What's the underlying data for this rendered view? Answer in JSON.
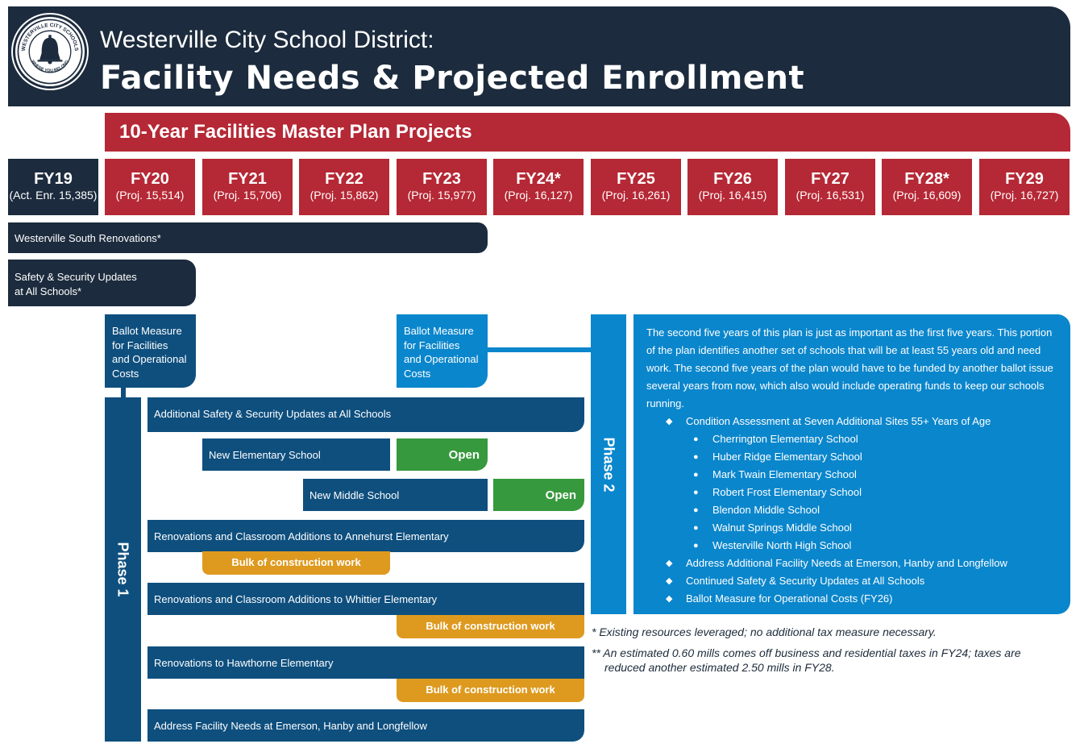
{
  "header": {
    "logo_ring_text": "WESTERVILLE CITY SCHOOLS",
    "logo_motto": "WHERE YOU BELONG",
    "title_line1": "Westerville City School District:",
    "title_line2": "Facility Needs & Projected Enrollment"
  },
  "plan_banner": "10-Year Facilities Master Plan Projects",
  "years": [
    {
      "fy": "FY19",
      "enrollment": "(Act. Enr. 15,385)"
    },
    {
      "fy": "FY20",
      "enrollment": "(Proj. 15,514)"
    },
    {
      "fy": "FY21",
      "enrollment": "(Proj. 15,706)"
    },
    {
      "fy": "FY22",
      "enrollment": "(Proj. 15,862)"
    },
    {
      "fy": "FY23",
      "enrollment": "(Proj. 15,977)"
    },
    {
      "fy": "FY24*",
      "enrollment": "(Proj. 16,127)"
    },
    {
      "fy": "FY25",
      "enrollment": "(Proj. 16,261)"
    },
    {
      "fy": "FY26",
      "enrollment": "(Proj. 16,415)"
    },
    {
      "fy": "FY27",
      "enrollment": "(Proj. 16,531)"
    },
    {
      "fy": "FY28*",
      "enrollment": "(Proj. 16,609)"
    },
    {
      "fy": "FY29",
      "enrollment": "(Proj. 16,727)"
    }
  ],
  "projects": {
    "south_renovations": "Westerville South Renovations*",
    "safety_line1": "Safety & Security Updates",
    "safety_line2": "at All Schools*",
    "ballot1": [
      "Ballot Measure",
      "for Facilities",
      "and Operational",
      "Costs"
    ],
    "ballot2": [
      "Ballot Measure",
      "for Facilities",
      "and Operational",
      "Costs"
    ],
    "phase1_label": "Phase 1",
    "phase2_label": "Phase 2",
    "additional_safety": "Additional Safety & Security Updates at All Schools",
    "new_elementary": "New Elementary School",
    "new_elementary_open": "Open",
    "new_middle": "New Middle School",
    "new_middle_open": "Open",
    "annehurst": "Renovations and Classroom Additions to Annehurst Elementary",
    "annehurst_bulk": "Bulk of construction work",
    "whittier": "Renovations and Classroom Additions to Whittier Elementary",
    "whittier_bulk": "Bulk of construction work",
    "hawthorne": "Renovations to Hawthorne Elementary",
    "hawthorne_bulk": "Bulk of construction work",
    "emerson": "Address Facility Needs at Emerson, Hanby and Longfellow"
  },
  "phase2_panel": {
    "intro": "The second five years of this plan is just as important as the first five years. This portion of the plan identifies another set of schools that will be at least 55 years old and need work. The second five years of the plan would have to be funded by another ballot issue several years from now, which also would include operating funds to keep our schools running.",
    "condition_assessment": "Condition Assessment at Seven Additional Sites 55+ Years of Age",
    "schools": [
      "Cherrington Elementary School",
      "Huber Ridge Elementary School",
      "Mark Twain Elementary School",
      "Robert Frost Elementary School",
      "Blendon Middle School",
      "Walnut Springs Middle School",
      "Westerville North High School"
    ],
    "bullet2": "Address Additional Facility Needs at Emerson, Hanby and Longfellow",
    "bullet3": "Continued Safety & Security Updates at All Schools",
    "bullet4": "Ballot Measure for Operational Costs (FY26)"
  },
  "notes": {
    "note1": "* Existing resources leveraged; no additional tax measure necessary.",
    "note2_line1": "** An estimated 0.60 mills comes off business and residential taxes in FY24; taxes are",
    "note2_line2": "reduced another estimated 2.50 mills in FY28."
  },
  "colors": {
    "navy": "#1c2b3d",
    "red": "#b52835",
    "dark_blue": "#0e4f7e",
    "light_blue": "#0a86cc",
    "green": "#37993d",
    "orange": "#de9a1f"
  }
}
